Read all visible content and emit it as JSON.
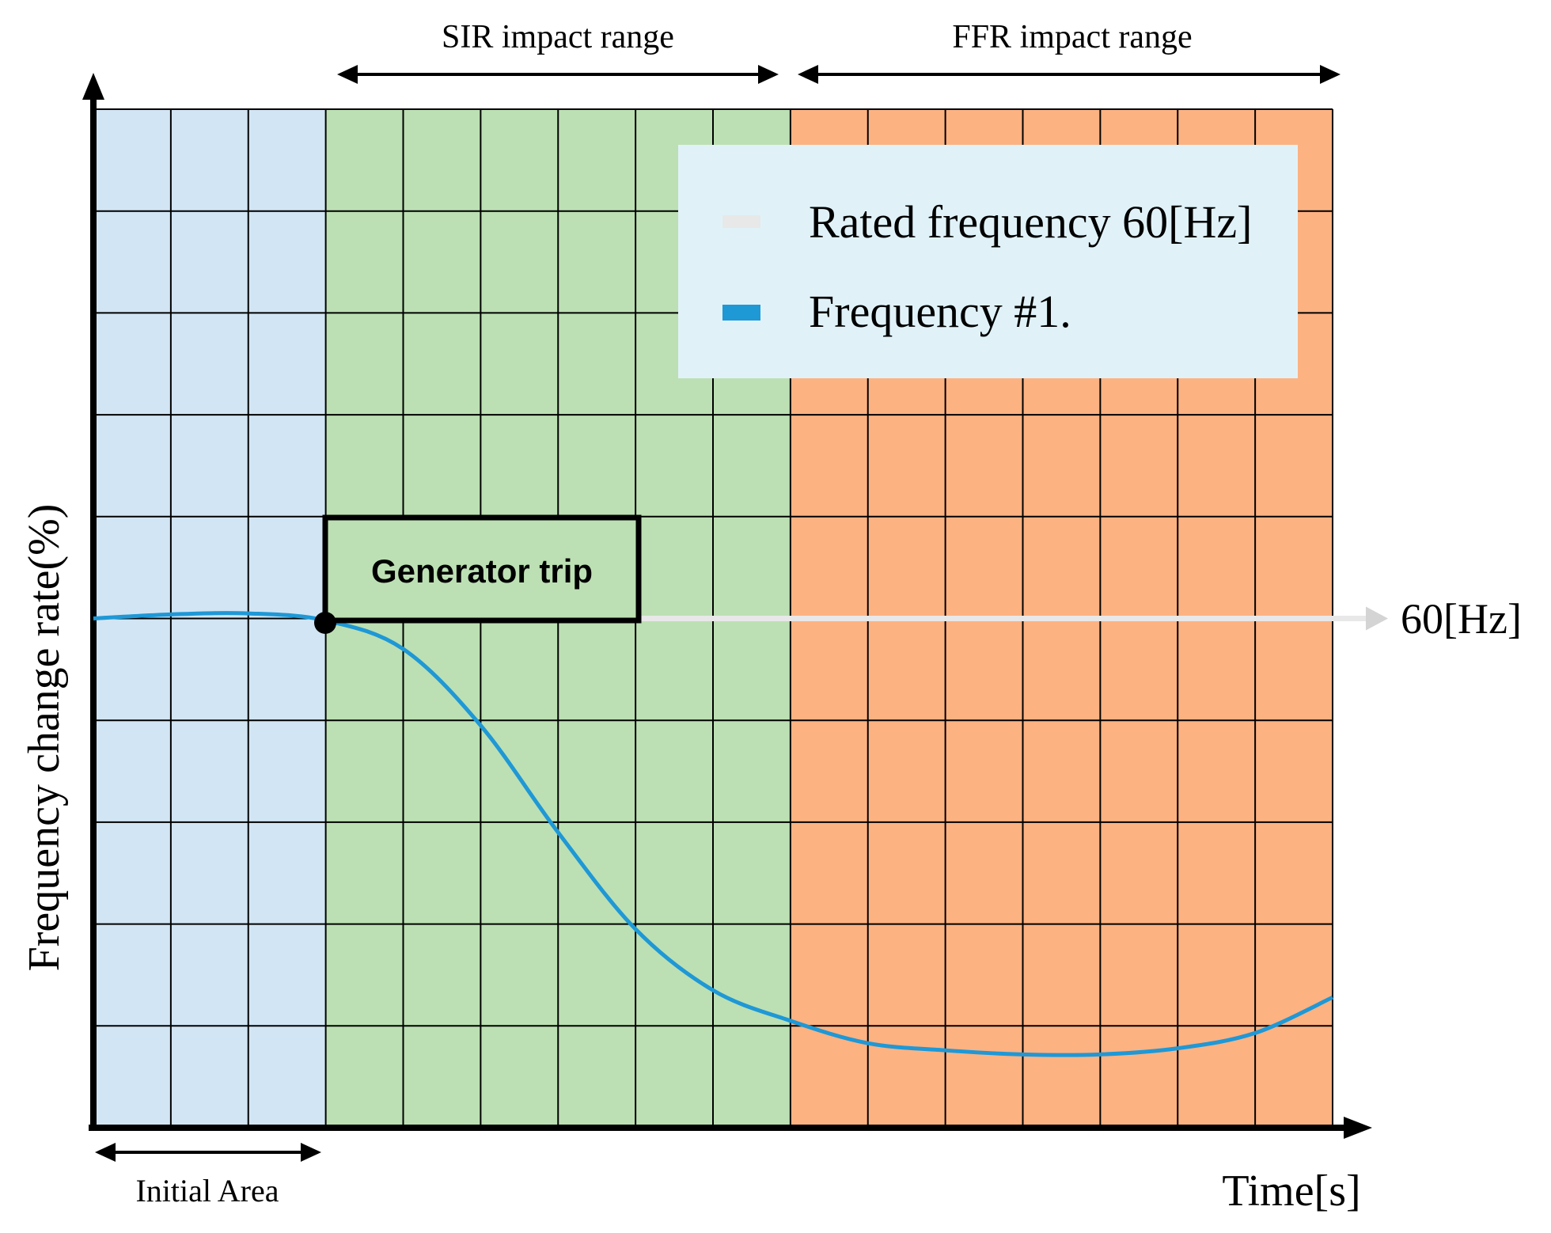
{
  "labels": {
    "sir_range": "SIR impact range",
    "ffr_range": "FFR impact range",
    "initial_area": "Initial Area",
    "x_axis": "Time[s]",
    "y_axis": "Frequency change rate(%)",
    "rated_marker": "60[Hz]",
    "event": "Generator trip"
  },
  "legend": {
    "items": [
      {
        "label": "Rated frequency 60[Hz]",
        "color": "#e8e8e8"
      },
      {
        "label": "Frequency #1.",
        "color": "#1f98d6"
      }
    ]
  },
  "colors": {
    "initial_area": "#d2e5f4",
    "sir_area": "#bce0b3",
    "ffr_area": "#fdb282",
    "legend_bg": "#e0f2f8",
    "grid": "#000000",
    "curve": "#1f98d6",
    "rated_line": "#e8e8e8",
    "event_box": "#bce0b3"
  },
  "chart_data": {
    "type": "line",
    "grid": true,
    "x_divisions": 16,
    "y_divisions": 10,
    "regions": [
      {
        "name": "initial_area",
        "from_col": 0,
        "to_col": 3
      },
      {
        "name": "sir_area",
        "from_col": 3,
        "to_col": 9
      },
      {
        "name": "ffr_area",
        "from_col": 9,
        "to_col": 16
      }
    ],
    "rated_level_row": 5,
    "event_col": 3,
    "series": [
      {
        "name": "Frequency #1.",
        "points": [
          [
            0,
            5
          ],
          [
            1,
            5.04
          ],
          [
            2,
            5.05
          ],
          [
            3,
            4.98
          ],
          [
            4,
            4.7
          ],
          [
            5,
            3.95
          ],
          [
            6,
            2.9
          ],
          [
            7,
            1.95
          ],
          [
            8,
            1.35
          ],
          [
            9,
            1.05
          ],
          [
            10,
            0.83
          ],
          [
            11,
            0.76
          ],
          [
            12,
            0.72
          ],
          [
            13,
            0.72
          ],
          [
            14,
            0.78
          ],
          [
            15,
            0.93
          ],
          [
            16,
            1.28
          ]
        ]
      }
    ]
  }
}
